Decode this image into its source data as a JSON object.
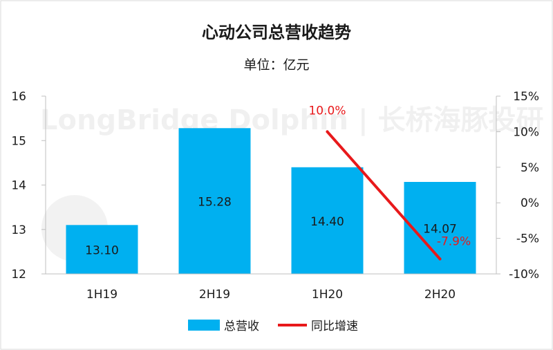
{
  "colors": {
    "bar": "#00b0f0",
    "line": "#e8191b",
    "axis": "#bfbfbf",
    "text": "#1a1a1a",
    "border": "#d9d9d9"
  },
  "watermark": "LongBridge Dolphin | 长桥海豚投研",
  "chart_data": {
    "type": "bar",
    "title": "心动公司总营收趋势",
    "subtitle": "单位：亿元",
    "categories": [
      "1H19",
      "2H19",
      "1H20",
      "2H20"
    ],
    "series": [
      {
        "name": "总营收",
        "type": "bar",
        "axis": "left",
        "values": [
          13.1,
          15.28,
          14.4,
          14.07
        ],
        "labels": [
          "13.10",
          "15.28",
          "14.40",
          "14.07"
        ]
      },
      {
        "name": "同比增速",
        "type": "line",
        "axis": "right",
        "values": [
          null,
          null,
          10.0,
          -7.9
        ],
        "labels": [
          "",
          "",
          "10.0%",
          "-7.9%"
        ]
      }
    ],
    "y_left": {
      "min": 12,
      "max": 16,
      "ticks": [
        "16",
        "15",
        "14",
        "13",
        "12"
      ],
      "tick_values": [
        16,
        15,
        14,
        13,
        12
      ]
    },
    "y_right": {
      "min": -10,
      "max": 15,
      "ticks": [
        "15%",
        "10%",
        "5%",
        "0%",
        "-5%",
        "-10%"
      ],
      "tick_values": [
        15,
        10,
        5,
        0,
        -5,
        -10
      ]
    },
    "legend": {
      "position": "bottom",
      "items": [
        "总营收",
        "同比增速"
      ]
    },
    "grid": false
  }
}
